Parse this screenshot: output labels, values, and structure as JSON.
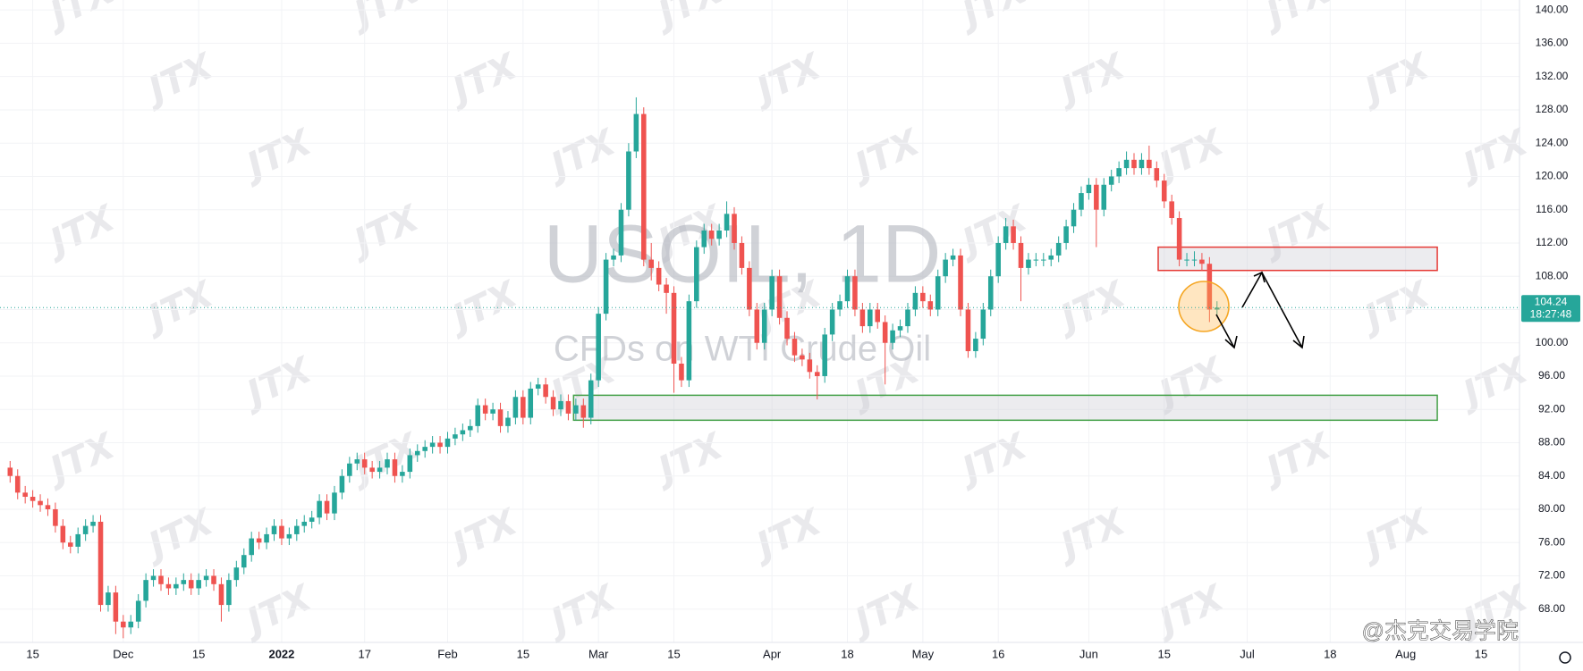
{
  "chart_data": {
    "type": "candlestick",
    "title": "USOIL, 1D",
    "subtitle": "CFDs on WTI Crude Oil",
    "watermark": "JTX",
    "logo": "@杰克交易学院",
    "up_color": "#26a69a",
    "down_color": "#ef5350",
    "open": [
      85,
      84,
      82,
      81.5,
      81,
      80.5,
      80,
      78,
      76,
      75.5,
      77,
      78,
      78.5,
      68.5,
      70,
      66.5,
      65.8,
      66.5,
      69,
      71.5,
      72,
      71,
      70.5,
      71,
      71.5,
      70.5,
      71.5,
      72,
      71,
      68.5,
      71.5,
      73,
      74.5,
      76.5,
      76,
      77,
      78,
      76.5,
      77,
      78,
      78.5,
      79,
      81,
      79.5,
      82,
      84,
      85.5,
      86,
      85,
      84.5,
      85,
      86,
      84,
      84.5,
      86.5,
      87,
      87.5,
      88,
      87.5,
      88.5,
      89,
      89.5,
      90,
      92.5,
      91.5,
      92,
      90,
      91,
      93.5,
      91,
      94.5,
      95,
      93.5,
      92,
      93,
      91.5,
      92.5,
      91,
      95.5,
      103.5,
      110,
      110.5,
      116,
      123,
      127.5,
      110,
      109,
      107,
      106,
      97.5,
      95.5,
      105,
      111.5,
      113.5,
      112.5,
      113.5,
      115.5,
      112,
      109,
      104,
      100,
      104,
      108,
      103,
      100.5,
      98.5,
      98,
      96.5,
      96,
      101,
      104,
      105,
      108,
      104,
      102,
      104,
      102.5,
      100,
      101.5,
      102,
      104,
      106,
      105,
      104,
      108,
      110,
      110.5,
      104,
      99,
      100.5,
      104,
      108,
      112,
      114,
      112,
      109,
      110,
      110,
      110,
      110.5,
      112,
      114,
      116,
      118,
      119,
      116,
      119,
      120,
      121,
      122,
      121,
      122,
      121,
      119.5,
      117,
      115,
      110,
      110,
      110,
      109.5,
      104
    ],
    "high": [
      85.8,
      84.8,
      82.8,
      82.3,
      81.8,
      81.3,
      80.8,
      78.8,
      76.8,
      77.8,
      78.8,
      79.3,
      79.3,
      70.8,
      70.8,
      67.3,
      67.3,
      69.8,
      72.3,
      72.8,
      72.8,
      71.8,
      71.8,
      72.3,
      72.3,
      72.3,
      72.8,
      72.8,
      71.8,
      72.3,
      73.8,
      75.3,
      77.3,
      77.3,
      77.8,
      78.8,
      78.8,
      77.8,
      78.8,
      79.3,
      79.8,
      81.8,
      81.8,
      82.8,
      84.8,
      86.3,
      86.8,
      86.8,
      85.8,
      85.8,
      86.8,
      86.8,
      85.3,
      87.3,
      87.8,
      88.3,
      88.8,
      88.8,
      89.3,
      89.8,
      90.3,
      90.8,
      93.3,
      93.3,
      92.8,
      92.8,
      91.8,
      94.3,
      94.3,
      95.3,
      95.8,
      95.8,
      94.3,
      93.8,
      93.8,
      93.3,
      93.3,
      96.3,
      104.3,
      110.8,
      111.3,
      116.8,
      124,
      129.5,
      128.3,
      112,
      109.8,
      107.8,
      106.8,
      98.3,
      105.8,
      112.3,
      114.3,
      114.3,
      114.3,
      117,
      116.3,
      112.8,
      109.8,
      104.8,
      104.8,
      108.8,
      108.8,
      103.8,
      101.3,
      99.3,
      98.8,
      97.3,
      101.8,
      104.8,
      105.8,
      108.8,
      108.8,
      104.8,
      104.8,
      104.8,
      103.3,
      102.3,
      102.8,
      104.8,
      106.8,
      106.8,
      105.8,
      108.8,
      110.8,
      111.3,
      111.3,
      104.8,
      101.3,
      104.8,
      108.8,
      112.8,
      115,
      114.8,
      112.8,
      110.8,
      110.8,
      110.8,
      111.3,
      112.8,
      114.8,
      116.8,
      118.8,
      119.8,
      119.8,
      119.8,
      120.8,
      121.8,
      123,
      122.8,
      122.8,
      123.7,
      121.8,
      120.3,
      117.8,
      115.8,
      110.8,
      111,
      110.8,
      110.3,
      105
    ],
    "low": [
      83.2,
      81.2,
      80.7,
      80.2,
      79.7,
      79.2,
      77.2,
      75.2,
      74.7,
      74.7,
      76.2,
      77.2,
      67.7,
      67.7,
      65,
      64.5,
      65,
      65.7,
      68.2,
      70.7,
      70.2,
      69.7,
      69.7,
      70.2,
      69.7,
      69.7,
      70.7,
      70.2,
      66.5,
      67.7,
      70.7,
      72.2,
      73.7,
      75.2,
      75.2,
      76.2,
      75.7,
      75.7,
      76.2,
      77.2,
      77.7,
      78.2,
      78.7,
      78.7,
      81.2,
      83.2,
      84.7,
      84.2,
      83.7,
      83.7,
      84.2,
      83.2,
      83.2,
      83.7,
      85.7,
      86.2,
      86.7,
      86.7,
      86.7,
      87.7,
      88.2,
      88.7,
      89.2,
      90.7,
      90.7,
      89.2,
      89.2,
      90.2,
      90.2,
      90.2,
      93.7,
      92.7,
      91.2,
      91.2,
      90.7,
      90.7,
      89.8,
      90.2,
      94.7,
      102.7,
      109.2,
      109.7,
      115.2,
      122.2,
      109.2,
      107.5,
      106.2,
      103.5,
      94,
      94.7,
      94.7,
      104.2,
      110.7,
      111.7,
      111.7,
      112.7,
      111.2,
      108.2,
      103.2,
      99.2,
      99.2,
      103.2,
      102.2,
      99.7,
      97.7,
      97.2,
      95.7,
      93.2,
      95.2,
      100.2,
      103.2,
      104.2,
      103.2,
      101.2,
      101.2,
      101.7,
      95,
      99.2,
      100.7,
      101.2,
      103.2,
      104.2,
      103.2,
      103.2,
      107.2,
      109.2,
      103.2,
      98.2,
      98.2,
      99.7,
      103.2,
      107.2,
      111.2,
      111.2,
      105,
      108.2,
      109.2,
      109.2,
      109.2,
      109.7,
      111.2,
      113.2,
      115.2,
      117.2,
      111.5,
      115.2,
      118.2,
      119.2,
      120.2,
      120.2,
      120.2,
      120.2,
      118.7,
      116.2,
      114.2,
      109.2,
      109.2,
      109.2,
      108.7,
      102.5,
      103.4
    ],
    "close": [
      84,
      82,
      81.5,
      81,
      80.5,
      80,
      78,
      76,
      75.5,
      77,
      78,
      78.5,
      68.5,
      70,
      66.5,
      65.8,
      66.5,
      69,
      71.5,
      72,
      71,
      70.5,
      71,
      71.5,
      70.5,
      71.5,
      72,
      71,
      68.5,
      71.5,
      73,
      74.5,
      76.5,
      76,
      77,
      78,
      76.5,
      77,
      78,
      78.5,
      79,
      81,
      79.5,
      82,
      84,
      85.5,
      86,
      85,
      84.5,
      85,
      86,
      84,
      84.5,
      86.5,
      87,
      87.5,
      88,
      87.5,
      88.5,
      89,
      89.5,
      90,
      92.5,
      91.5,
      92,
      90,
      91,
      93.5,
      91,
      94.5,
      95,
      93.5,
      92,
      93,
      91.5,
      92.5,
      91,
      95.5,
      103.5,
      110,
      110.5,
      116,
      123,
      127.5,
      110,
      109,
      107,
      106,
      97.5,
      95.5,
      105,
      111.5,
      113.5,
      112.5,
      113.5,
      115.5,
      112,
      109,
      104,
      100,
      104,
      108,
      103,
      100.5,
      98.5,
      98,
      96.5,
      96,
      101,
      104,
      105,
      108,
      104,
      102,
      104,
      102.5,
      100,
      101.5,
      102,
      104,
      106,
      105,
      104,
      108,
      110,
      110.5,
      104,
      99,
      100.5,
      104,
      108,
      112,
      114,
      112,
      109,
      110,
      110,
      110,
      110.5,
      112,
      114,
      116,
      118,
      119,
      116,
      119,
      120,
      121,
      122,
      121,
      122,
      121,
      119.5,
      117,
      115,
      110,
      110,
      110,
      109.5,
      104,
      104.24
    ],
    "last_price": 104.24,
    "countdown": "18:27:48",
    "zones": [
      {
        "color": "#e53935",
        "top": 111.5,
        "bottom": 108.7,
        "from": 152.2,
        "to": 189.2
      },
      {
        "color": "#43a047",
        "top": 93.7,
        "bottom": 90.7,
        "from": 74.7,
        "to": 189.2
      }
    ],
    "xlim": [
      -1.34,
      200.1
    ],
    "xticks": [
      {
        "value": 3,
        "label": "15"
      },
      {
        "value": 15,
        "label": "Dec"
      },
      {
        "value": 25,
        "label": "15"
      },
      {
        "value": 36,
        "label": "2022"
      },
      {
        "value": 47,
        "label": "17"
      },
      {
        "value": 58,
        "label": "Feb"
      },
      {
        "value": 68,
        "label": "15"
      },
      {
        "value": 78,
        "label": "Mar"
      },
      {
        "value": 88,
        "label": "15"
      },
      {
        "value": 101,
        "label": "Apr"
      },
      {
        "value": 111,
        "label": "18"
      },
      {
        "value": 121,
        "label": "May"
      },
      {
        "value": 131,
        "label": "16"
      },
      {
        "value": 143,
        "label": "Jun"
      },
      {
        "value": 153,
        "label": "15"
      },
      {
        "value": 164,
        "label": "Jul"
      },
      {
        "value": 175,
        "label": "18"
      },
      {
        "value": 185,
        "label": "Aug"
      },
      {
        "value": 195,
        "label": "15"
      }
    ],
    "ylim": [
      64,
      141.2
    ],
    "yticks": [
      {
        "value": 68,
        "label": "68.00"
      },
      {
        "value": 72,
        "label": "72.00"
      },
      {
        "value": 76,
        "label": "76.00"
      },
      {
        "value": 80,
        "label": "80.00"
      },
      {
        "value": 84,
        "label": "84.00"
      },
      {
        "value": 88,
        "label": "88.00"
      },
      {
        "value": 92,
        "label": "92.00"
      },
      {
        "value": 96,
        "label": "96.00"
      },
      {
        "value": 100,
        "label": "100.00"
      },
      {
        "value": 104,
        "label": "104.00"
      },
      {
        "value": 108,
        "label": "108.00"
      },
      {
        "value": 112,
        "label": "112.00"
      },
      {
        "value": 116,
        "label": "116.00"
      },
      {
        "value": 120,
        "label": "120.00"
      },
      {
        "value": 124,
        "label": "124.00"
      },
      {
        "value": 128,
        "label": "128.00"
      },
      {
        "value": 132,
        "label": "132.00"
      },
      {
        "value": 136,
        "label": "136.00"
      },
      {
        "value": 140,
        "label": "140.00"
      }
    ],
    "grid": true
  }
}
